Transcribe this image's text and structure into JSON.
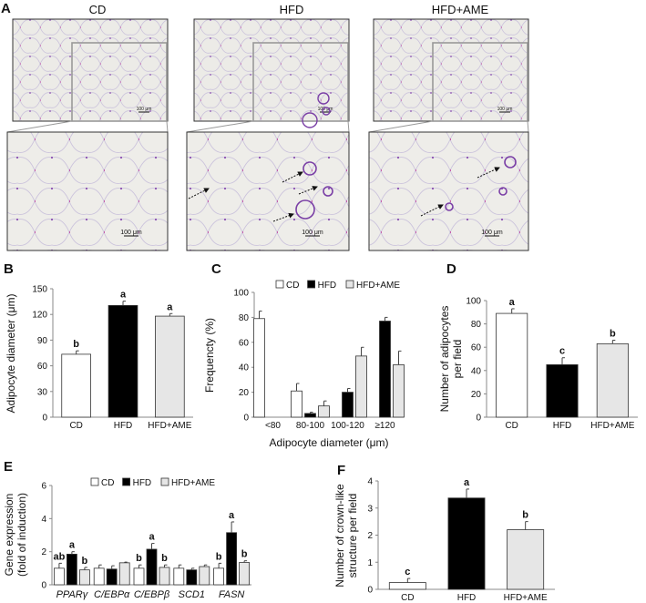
{
  "panel_labels": [
    "A",
    "B",
    "C",
    "D",
    "E",
    "F"
  ],
  "histology": {
    "columns": [
      "CD",
      "HFD",
      "HFD+AME"
    ],
    "scale_bar_label": "100 μm",
    "colors": {
      "background": "#ecebe7",
      "membrane": "#c8c0da",
      "stain": "#8a4fb0",
      "nuclei": "#c2389a",
      "frame": "#333333",
      "inset": "#999999"
    }
  },
  "colors": {
    "CD": "#ffffff",
    "HFD": "#000000",
    "HFD+AME": "#e6e6e6",
    "axis": "#888888"
  },
  "chart_data": [
    {
      "id": "B",
      "type": "bar",
      "title": "",
      "xlabel": "",
      "ylabel": "Adipocyte diameter (μm)",
      "ylim": [
        0,
        150
      ],
      "yticks": [
        "0",
        "30",
        "60",
        "90",
        "120",
        "150"
      ],
      "categories": [
        "CD",
        "HFD",
        "HFD+AME"
      ],
      "values": [
        73.5,
        130.5,
        118
      ],
      "errors": [
        4,
        5,
        3
      ],
      "letters": [
        "b",
        "a",
        "a"
      ]
    },
    {
      "id": "C",
      "type": "bar",
      "title": "",
      "xlabel": "Adipocyte diameter (μm)",
      "ylabel": "Frequencty (%)",
      "ylim": [
        0,
        100
      ],
      "yticks": [
        "0",
        "20",
        "40",
        "60",
        "80",
        "100"
      ],
      "categories": [
        "<80",
        "80-100",
        "100-120",
        "≥120"
      ],
      "legend": {
        "placement": "top",
        "entries": [
          "CD",
          "HFD",
          "HFD+AME"
        ]
      },
      "series": [
        {
          "name": "CD",
          "values": [
            79,
            21,
            0,
            0
          ],
          "errors": [
            6,
            6,
            0,
            0
          ]
        },
        {
          "name": "HFD",
          "values": [
            0,
            3,
            20,
            77
          ],
          "errors": [
            0,
            1,
            3,
            3
          ]
        },
        {
          "name": "HFD+AME",
          "values": [
            0,
            9,
            49,
            42
          ],
          "errors": [
            0,
            4,
            7,
            11
          ]
        }
      ]
    },
    {
      "id": "D",
      "type": "bar",
      "title": "",
      "xlabel": "",
      "ylabel": "Number of adipocytes per field",
      "ylabel_lines": [
        "Number of adipocytes",
        "per field"
      ],
      "ylim": [
        0,
        100
      ],
      "yticks": [
        "0",
        "20",
        "40",
        "60",
        "80",
        "100"
      ],
      "categories": [
        "CD",
        "HFD",
        "HFD+AME"
      ],
      "values": [
        89,
        45,
        63
      ],
      "errors": [
        4,
        6,
        3
      ],
      "letters": [
        "a",
        "c",
        "b"
      ]
    },
    {
      "id": "E",
      "type": "bar",
      "title": "",
      "xlabel": "",
      "ylabel": "Gene expression (fold of induction)",
      "ylabel_lines": [
        "Gene expression",
        "(fold of induction)"
      ],
      "ylim": [
        0,
        6
      ],
      "yticks": [
        "0",
        "2",
        "4",
        "6"
      ],
      "categories": [
        "PPARγ",
        "C/EBPα",
        "C/EBPβ",
        "SCD1",
        "FASN"
      ],
      "legend": {
        "placement": "top",
        "entries": [
          "CD",
          "HFD",
          "HFD+AME"
        ]
      },
      "series": [
        {
          "name": "CD",
          "values": [
            1.0,
            1.0,
            1.0,
            1.0,
            1.0
          ],
          "errors": [
            0.3,
            0.2,
            0.2,
            0.2,
            0.3
          ],
          "letters": [
            "ab",
            "",
            "b",
            "",
            "b"
          ]
        },
        {
          "name": "HFD",
          "values": [
            1.85,
            0.95,
            2.15,
            0.9,
            3.15
          ],
          "errors": [
            0.15,
            0.2,
            0.35,
            0.1,
            0.65
          ],
          "letters": [
            "a",
            "",
            "a",
            "",
            "a"
          ]
        },
        {
          "name": "HFD+AME",
          "values": [
            0.9,
            1.33,
            1.05,
            1.1,
            1.35
          ],
          "errors": [
            0.15,
            0.04,
            0.15,
            0.1,
            0.1
          ],
          "letters": [
            "b",
            "",
            "b",
            "",
            "b"
          ]
        }
      ]
    },
    {
      "id": "F",
      "type": "bar",
      "title": "",
      "xlabel": "",
      "ylabel": "Number of crown-like structure per field",
      "ylabel_lines": [
        "Number of crown-like",
        "structure per field"
      ],
      "ylim": [
        0,
        4
      ],
      "yticks": [
        "0",
        "1",
        "2",
        "3",
        "4"
      ],
      "categories": [
        "CD",
        "HFD",
        "HFD+AME"
      ],
      "values": [
        0.25,
        3.37,
        2.2
      ],
      "errors": [
        0.15,
        0.33,
        0.3
      ],
      "letters": [
        "c",
        "a",
        "b"
      ]
    }
  ]
}
